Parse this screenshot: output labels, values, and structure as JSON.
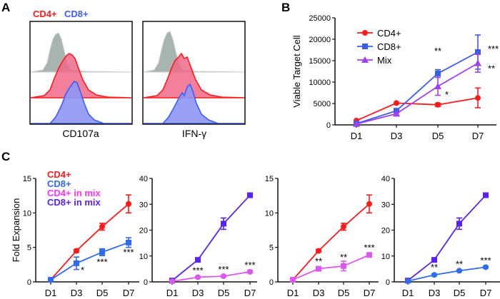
{
  "panel_labels": {
    "a": "A",
    "b": "B",
    "c": "C"
  },
  "panel_a": {
    "legend": [
      {
        "label": "CD4+",
        "color": "#ff1a1a"
      },
      {
        "label": "CD8+",
        "color": "#3d5cff"
      }
    ],
    "histograms": [
      {
        "xlabel": "CD107a"
      },
      {
        "xlabel": "IFN-γ"
      }
    ],
    "colors": {
      "control": "#a8b4b0",
      "cd4": "#ff1a1a",
      "cd8": "#3d5cff"
    }
  },
  "chart_data": [
    {
      "id": "B",
      "type": "line",
      "ylabel": "Viable Target Cell",
      "categories": [
        "D1",
        "D3",
        "D5",
        "D7"
      ],
      "ylim": [
        0,
        25000
      ],
      "yticks": [
        "0",
        "5000",
        "10000",
        "15000",
        "20000",
        "25000"
      ],
      "legend_position": "top-left",
      "series": [
        {
          "name": "CD4+",
          "color": "#ff1a1a",
          "marker": "circle",
          "values": [
            1000,
            5100,
            4700,
            6300
          ],
          "errors": [
            0,
            0,
            400,
            2300
          ]
        },
        {
          "name": "CD8+",
          "color": "#3a5cf0",
          "marker": "square",
          "values": [
            300,
            3300,
            12000,
            17000
          ],
          "errors": [
            0,
            300,
            900,
            4000
          ]
        },
        {
          "name": "Mix",
          "color": "#a040f0",
          "marker": "triangle",
          "values": [
            200,
            2600,
            9000,
            14400
          ],
          "errors": [
            0,
            300,
            2100,
            2100
          ]
        }
      ],
      "annotations": [
        {
          "category": "D5",
          "text": "**"
        },
        {
          "category": "D5",
          "text": "*"
        },
        {
          "category": "D7",
          "text": "***"
        },
        {
          "category": "D7",
          "text": "**"
        }
      ]
    },
    {
      "id": "C1",
      "type": "line",
      "ylabel": "Fold Expansion",
      "categories": [
        "D1",
        "D3",
        "D5",
        "D7"
      ],
      "ylim": [
        0,
        15
      ],
      "yticks": [
        "0",
        "5",
        "10",
        "15"
      ],
      "legend_position": "top-left",
      "legend": [
        {
          "label": "CD4+",
          "color": "#ff1a1a"
        },
        {
          "label": "CD8+",
          "color": "#2f6bf0"
        },
        {
          "label": "CD4+ in mix",
          "color": "#ff33ff"
        },
        {
          "label": "CD8+ in mix",
          "color": "#5a22f0"
        }
      ],
      "series": [
        {
          "name": "CD4+",
          "color": "#ff1a1a",
          "marker": "circle",
          "values": [
            0.3,
            4.5,
            8.0,
            11.3
          ],
          "errors": [
            0,
            0.2,
            0.5,
            1.3
          ]
        },
        {
          "name": "CD8+",
          "color": "#2f6bf0",
          "marker": "square",
          "values": [
            0.3,
            2.7,
            4.3,
            5.7
          ],
          "errors": [
            0,
            0.9,
            0.5,
            0.7
          ]
        }
      ],
      "annotations": [
        {
          "category": "D3",
          "text": "*"
        },
        {
          "category": "D5",
          "text": "***"
        },
        {
          "category": "D7",
          "text": "***"
        }
      ]
    },
    {
      "id": "C2",
      "type": "line",
      "ylabel": "",
      "categories": [
        "D1",
        "D3",
        "D5",
        "D7"
      ],
      "ylim": [
        0,
        40
      ],
      "yticks": [
        "0",
        "10",
        "20",
        "30",
        "40"
      ],
      "series": [
        {
          "name": "CD8+ in mix",
          "color": "#5a22f0",
          "marker": "square",
          "values": [
            0.5,
            8.5,
            22.5,
            33.5
          ],
          "errors": [
            0,
            0.6,
            2.2,
            0.5
          ]
        },
        {
          "name": "CD4+ in mix",
          "color": "#dd55f5",
          "marker": "circle",
          "values": [
            0.2,
            1.8,
            2.2,
            3.9
          ],
          "errors": [
            0,
            0.3,
            0.4,
            0.5
          ]
        }
      ],
      "annotations": [
        {
          "category": "D3",
          "text": "***"
        },
        {
          "category": "D5",
          "text": "***"
        },
        {
          "category": "D7",
          "text": "***"
        }
      ]
    },
    {
      "id": "C3",
      "type": "line",
      "ylabel": "",
      "categories": [
        "D1",
        "D3",
        "D5",
        "D7"
      ],
      "ylim": [
        0,
        15
      ],
      "yticks": [
        "0",
        "5",
        "10",
        "15"
      ],
      "series": [
        {
          "name": "CD4+",
          "color": "#ff1a1a",
          "marker": "circle",
          "values": [
            0.3,
            4.5,
            8.0,
            11.3
          ],
          "errors": [
            0,
            0.2,
            0.5,
            1.3
          ]
        },
        {
          "name": "CD4+ in mix",
          "color": "#dd55f5",
          "marker": "square",
          "values": [
            0.3,
            1.9,
            2.3,
            3.9
          ],
          "errors": [
            0,
            0.3,
            0.7,
            0.3
          ]
        }
      ],
      "annotations": [
        {
          "category": "D3",
          "text": "**"
        },
        {
          "category": "D5",
          "text": "**"
        },
        {
          "category": "D7",
          "text": "***"
        }
      ]
    },
    {
      "id": "C4",
      "type": "line",
      "ylabel": "",
      "categories": [
        "D1",
        "D3",
        "D5",
        "D7"
      ],
      "ylim": [
        0,
        40
      ],
      "yticks": [
        "0",
        "10",
        "20",
        "30",
        "40"
      ],
      "series": [
        {
          "name": "CD8+ in mix",
          "color": "#5a22f0",
          "marker": "square",
          "values": [
            0.5,
            8.5,
            22.5,
            33.5
          ],
          "errors": [
            0,
            0.6,
            2.2,
            0.5
          ]
        },
        {
          "name": "CD8+",
          "color": "#2f6bf0",
          "marker": "circle",
          "values": [
            0.3,
            2.7,
            4.3,
            5.7
          ],
          "errors": [
            0,
            0.4,
            0.3,
            0.4
          ]
        }
      ],
      "annotations": [
        {
          "category": "D3",
          "text": "**"
        },
        {
          "category": "D5",
          "text": "**"
        },
        {
          "category": "D7",
          "text": "***"
        }
      ]
    }
  ]
}
